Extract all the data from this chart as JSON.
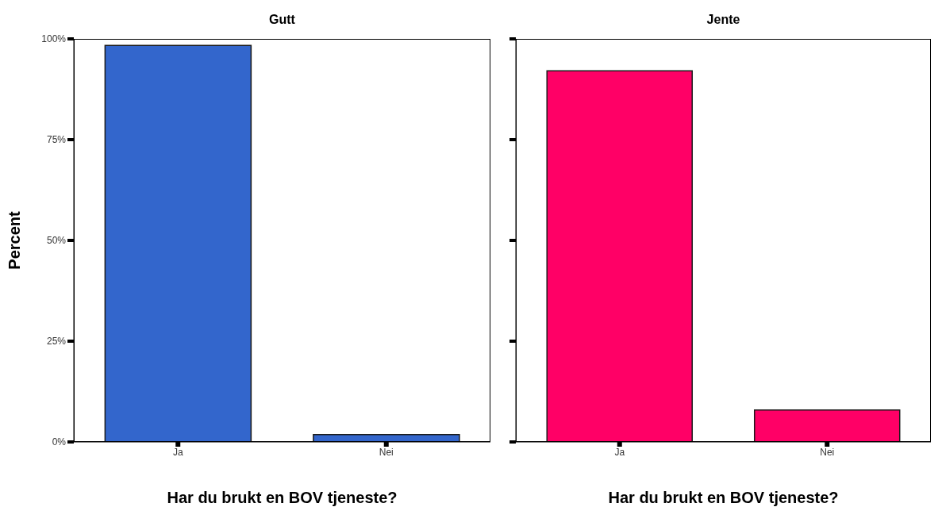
{
  "chart_data": [
    {
      "type": "bar",
      "title": "Gutt",
      "xlabel": "Har du brukt en BOV tjeneste?",
      "ylabel": "Percent",
      "categories": [
        "Ja",
        "Nei"
      ],
      "values": [
        98.4,
        1.8
      ],
      "color": "#3366cc",
      "ylim": [
        0,
        100
      ],
      "yticks": [
        {
          "value": 0,
          "label": "0%"
        },
        {
          "value": 25,
          "label": "25%"
        },
        {
          "value": 50,
          "label": "50%"
        },
        {
          "value": 75,
          "label": "75%"
        },
        {
          "value": 100,
          "label": "100%"
        }
      ],
      "grid": false,
      "legend": false
    },
    {
      "type": "bar",
      "title": "Jente",
      "xlabel": "Har du brukt en BOV tjeneste?",
      "categories": [
        "Ja",
        "Nei"
      ],
      "values": [
        92.1,
        7.9
      ],
      "color": "#ff0066",
      "ylim": [
        0,
        100
      ],
      "yticks": [
        {
          "value": 0,
          "label": null
        },
        {
          "value": 25,
          "label": null
        },
        {
          "value": 50,
          "label": null
        },
        {
          "value": 75,
          "label": null
        },
        {
          "value": 100,
          "label": null
        }
      ],
      "grid": false,
      "legend": false,
      "tick_labels": "x"
    }
  ]
}
